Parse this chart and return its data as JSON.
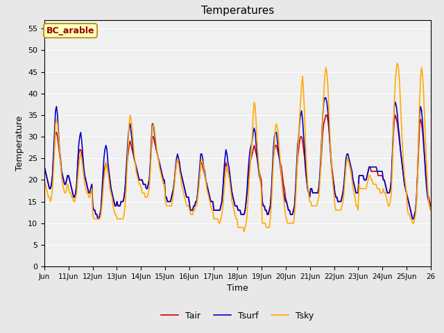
{
  "title": "Temperatures",
  "xlabel": "Time",
  "ylabel": "Temperature",
  "site_label": "BC_arable",
  "ylim": [
    0,
    57
  ],
  "yticks": [
    0,
    5,
    10,
    15,
    20,
    25,
    30,
    35,
    40,
    45,
    50,
    55
  ],
  "legend": [
    "Tair",
    "Tsurf",
    "Tsky"
  ],
  "line_colors": [
    "#cc0000",
    "#0000cc",
    "#ffaa00"
  ],
  "line_width": 1.2,
  "background_color": "#e8e8e8",
  "plot_bg_color": "#f0f0f0",
  "num_days": 16,
  "points_per_day": 24,
  "start_day": 10,
  "tair": [
    23,
    22,
    21,
    20,
    19,
    18,
    18,
    19,
    21,
    25,
    28,
    31,
    31,
    30,
    28,
    26,
    24,
    22,
    21,
    20,
    19,
    19,
    20,
    21,
    21,
    20,
    19,
    18,
    17,
    16,
    16,
    17,
    19,
    23,
    26,
    27,
    27,
    26,
    24,
    22,
    21,
    20,
    19,
    18,
    17,
    17,
    18,
    19,
    14,
    13,
    13,
    12,
    12,
    11,
    11,
    12,
    13,
    16,
    19,
    22,
    23,
    24,
    23,
    22,
    21,
    20,
    18,
    17,
    16,
    15,
    14,
    14,
    15,
    14,
    14,
    14,
    15,
    15,
    15,
    16,
    18,
    21,
    24,
    26,
    28,
    29,
    28,
    27,
    26,
    25,
    24,
    23,
    22,
    21,
    20,
    20,
    20,
    20,
    19,
    19,
    19,
    18,
    18,
    19,
    20,
    23,
    27,
    30,
    30,
    29,
    28,
    27,
    26,
    25,
    24,
    23,
    22,
    21,
    20,
    20,
    16,
    16,
    15,
    15,
    15,
    15,
    16,
    17,
    18,
    20,
    22,
    24,
    25,
    24,
    23,
    22,
    21,
    20,
    19,
    18,
    17,
    16,
    16,
    16,
    14,
    13,
    13,
    13,
    14,
    14,
    15,
    15,
    17,
    19,
    21,
    24,
    24,
    23,
    22,
    21,
    20,
    19,
    18,
    17,
    16,
    15,
    15,
    15,
    13,
    13,
    13,
    13,
    13,
    13,
    13,
    14,
    15,
    18,
    21,
    23,
    24,
    23,
    22,
    21,
    20,
    18,
    17,
    16,
    15,
    14,
    14,
    14,
    13,
    13,
    13,
    12,
    12,
    12,
    12,
    13,
    15,
    17,
    20,
    22,
    24,
    25,
    26,
    27,
    28,
    27,
    26,
    25,
    24,
    22,
    21,
    20,
    15,
    14,
    14,
    13,
    13,
    12,
    12,
    13,
    14,
    17,
    21,
    25,
    27,
    28,
    28,
    27,
    26,
    25,
    24,
    23,
    21,
    19,
    18,
    16,
    15,
    14,
    13,
    13,
    12,
    12,
    12,
    13,
    14,
    17,
    21,
    25,
    27,
    29,
    30,
    30,
    29,
    27,
    25,
    22,
    20,
    18,
    17,
    16,
    18,
    18,
    17,
    17,
    17,
    17,
    17,
    17,
    18,
    20,
    23,
    27,
    31,
    33,
    34,
    35,
    35,
    34,
    32,
    29,
    26,
    23,
    21,
    19,
    17,
    16,
    16,
    15,
    15,
    15,
    15,
    16,
    17,
    19,
    21,
    24,
    25,
    25,
    24,
    23,
    22,
    21,
    20,
    19,
    18,
    17,
    17,
    17,
    21,
    21,
    21,
    21,
    21,
    20,
    20,
    20,
    21,
    22,
    23,
    23,
    22,
    22,
    22,
    22,
    22,
    22,
    22,
    21,
    21,
    21,
    21,
    21,
    20,
    20,
    19,
    18,
    17,
    17,
    17,
    18,
    20,
    25,
    30,
    34,
    35,
    34,
    33,
    31,
    29,
    27,
    25,
    23,
    21,
    19,
    18,
    17,
    16,
    15,
    14,
    13,
    12,
    11,
    11,
    12,
    13,
    16,
    21,
    27,
    33,
    34,
    33,
    31,
    28,
    25,
    22,
    19,
    17,
    16,
    15,
    14
  ],
  "tsurf": [
    23,
    22,
    21,
    20,
    19,
    18,
    18,
    19,
    21,
    26,
    31,
    36,
    37,
    35,
    31,
    27,
    25,
    22,
    21,
    20,
    19,
    19,
    20,
    21,
    21,
    20,
    19,
    18,
    17,
    16,
    16,
    17,
    19,
    24,
    28,
    30,
    31,
    29,
    26,
    23,
    21,
    20,
    19,
    18,
    17,
    17,
    18,
    19,
    14,
    13,
    13,
    12,
    12,
    11,
    11,
    12,
    13,
    17,
    21,
    25,
    27,
    28,
    27,
    24,
    22,
    20,
    18,
    17,
    16,
    15,
    14,
    14,
    15,
    14,
    14,
    14,
    15,
    15,
    15,
    16,
    18,
    22,
    26,
    30,
    32,
    33,
    31,
    29,
    27,
    25,
    24,
    23,
    22,
    21,
    20,
    20,
    20,
    20,
    19,
    19,
    19,
    18,
    18,
    19,
    20,
    24,
    29,
    33,
    33,
    31,
    29,
    27,
    26,
    25,
    24,
    23,
    22,
    21,
    20,
    20,
    16,
    16,
    15,
    15,
    15,
    15,
    16,
    17,
    18,
    20,
    23,
    25,
    26,
    25,
    24,
    22,
    21,
    20,
    19,
    18,
    17,
    16,
    16,
    16,
    14,
    13,
    13,
    13,
    14,
    14,
    15,
    15,
    17,
    20,
    23,
    26,
    26,
    25,
    23,
    22,
    20,
    19,
    18,
    17,
    16,
    15,
    15,
    15,
    13,
    13,
    13,
    13,
    13,
    13,
    13,
    14,
    15,
    18,
    22,
    25,
    27,
    26,
    24,
    23,
    21,
    19,
    17,
    16,
    15,
    14,
    14,
    14,
    13,
    13,
    13,
    12,
    12,
    12,
    12,
    13,
    15,
    18,
    22,
    25,
    27,
    28,
    29,
    31,
    32,
    31,
    28,
    25,
    23,
    21,
    20,
    19,
    15,
    14,
    14,
    13,
    13,
    12,
    12,
    13,
    14,
    17,
    22,
    27,
    30,
    31,
    31,
    29,
    27,
    25,
    23,
    21,
    19,
    17,
    16,
    15,
    15,
    14,
    13,
    13,
    12,
    12,
    12,
    13,
    14,
    18,
    23,
    28,
    30,
    33,
    35,
    36,
    34,
    30,
    27,
    23,
    20,
    18,
    17,
    16,
    18,
    18,
    17,
    17,
    17,
    17,
    17,
    17,
    18,
    21,
    25,
    30,
    35,
    38,
    39,
    39,
    38,
    36,
    33,
    29,
    25,
    22,
    20,
    19,
    17,
    16,
    16,
    15,
    15,
    15,
    15,
    16,
    17,
    19,
    22,
    25,
    26,
    26,
    25,
    24,
    23,
    22,
    20,
    19,
    18,
    17,
    17,
    17,
    21,
    21,
    21,
    21,
    21,
    20,
    20,
    20,
    21,
    22,
    23,
    23,
    23,
    23,
    23,
    23,
    23,
    23,
    22,
    22,
    22,
    22,
    22,
    22,
    20,
    20,
    19,
    18,
    17,
    17,
    17,
    18,
    20,
    26,
    32,
    37,
    38,
    37,
    35,
    32,
    30,
    27,
    25,
    23,
    21,
    19,
    18,
    17,
    16,
    15,
    14,
    13,
    12,
    11,
    11,
    12,
    13,
    16,
    22,
    29,
    35,
    37,
    36,
    33,
    29,
    25,
    21,
    18,
    16,
    15,
    14,
    13
  ],
  "tsky": [
    20,
    19,
    18,
    17,
    16,
    16,
    15,
    16,
    18,
    22,
    27,
    33,
    34,
    33,
    30,
    27,
    24,
    21,
    19,
    18,
    17,
    17,
    18,
    19,
    18,
    17,
    17,
    16,
    16,
    15,
    15,
    16,
    17,
    20,
    23,
    25,
    26,
    25,
    23,
    21,
    19,
    18,
    17,
    17,
    16,
    16,
    17,
    18,
    12,
    11,
    11,
    11,
    11,
    11,
    11,
    11,
    12,
    14,
    17,
    20,
    22,
    24,
    23,
    22,
    20,
    18,
    17,
    16,
    14,
    13,
    12,
    12,
    11,
    11,
    11,
    11,
    11,
    11,
    11,
    12,
    14,
    18,
    23,
    28,
    33,
    35,
    34,
    32,
    29,
    26,
    24,
    22,
    21,
    20,
    19,
    19,
    18,
    17,
    17,
    17,
    16,
    16,
    16,
    17,
    18,
    22,
    27,
    32,
    33,
    32,
    30,
    28,
    26,
    25,
    23,
    22,
    21,
    20,
    19,
    19,
    15,
    14,
    14,
    14,
    14,
    14,
    14,
    15,
    17,
    19,
    22,
    24,
    25,
    24,
    22,
    21,
    19,
    18,
    17,
    16,
    15,
    14,
    14,
    14,
    13,
    12,
    12,
    12,
    13,
    13,
    14,
    14,
    16,
    18,
    21,
    24,
    25,
    24,
    23,
    21,
    20,
    18,
    17,
    16,
    15,
    14,
    13,
    13,
    11,
    11,
    11,
    11,
    11,
    10,
    10,
    11,
    12,
    14,
    17,
    20,
    22,
    23,
    22,
    21,
    19,
    17,
    15,
    14,
    13,
    12,
    11,
    11,
    9,
    9,
    9,
    9,
    9,
    9,
    8,
    9,
    10,
    12,
    16,
    20,
    23,
    26,
    30,
    35,
    38,
    37,
    33,
    28,
    25,
    22,
    20,
    18,
    10,
    10,
    10,
    10,
    9,
    9,
    9,
    9,
    11,
    14,
    19,
    24,
    28,
    32,
    33,
    32,
    30,
    27,
    24,
    21,
    18,
    16,
    14,
    12,
    11,
    10,
    10,
    10,
    10,
    10,
    10,
    10,
    12,
    15,
    20,
    26,
    30,
    34,
    38,
    42,
    44,
    40,
    35,
    28,
    23,
    19,
    17,
    15,
    15,
    14,
    14,
    14,
    14,
    14,
    14,
    15,
    16,
    19,
    23,
    29,
    35,
    40,
    44,
    46,
    45,
    42,
    37,
    31,
    26,
    22,
    19,
    17,
    14,
    13,
    13,
    13,
    13,
    13,
    13,
    14,
    15,
    17,
    20,
    23,
    25,
    25,
    24,
    23,
    22,
    20,
    18,
    17,
    16,
    14,
    14,
    13,
    19,
    18,
    18,
    18,
    18,
    18,
    18,
    18,
    19,
    20,
    21,
    21,
    20,
    20,
    19,
    19,
    19,
    19,
    18,
    18,
    18,
    17,
    17,
    17,
    18,
    17,
    17,
    16,
    15,
    14,
    14,
    15,
    17,
    23,
    31,
    38,
    43,
    46,
    47,
    46,
    43,
    38,
    33,
    28,
    24,
    21,
    19,
    17,
    13,
    12,
    12,
    11,
    11,
    10,
    10,
    11,
    12,
    15,
    21,
    30,
    38,
    44,
    46,
    44,
    40,
    34,
    28,
    23,
    18,
    15,
    14,
    13
  ]
}
